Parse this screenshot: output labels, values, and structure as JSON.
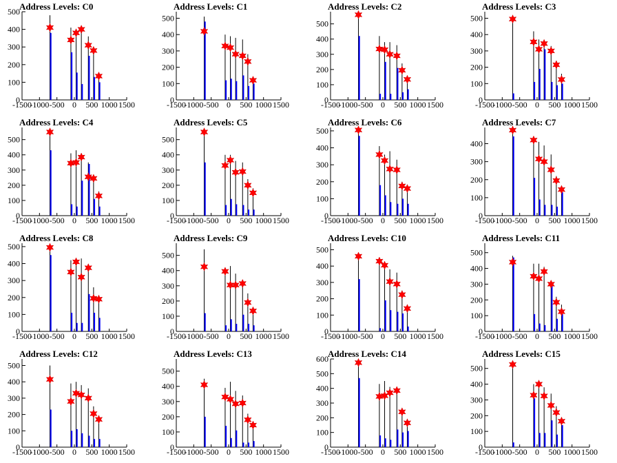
{
  "xlim": [
    -1500,
    1500
  ],
  "x_ticks": [
    -1500,
    -1000,
    -500,
    0,
    500,
    1000,
    1500
  ],
  "levels": [
    -700,
    -100,
    50,
    200,
    400,
    550,
    700
  ],
  "colors": {
    "black_line": "#000000",
    "blue_line": "#0000ff",
    "star": "#ff0000"
  },
  "chart_data": [
    {
      "type": "bar",
      "title": "Address Levels: C0",
      "ylim": [
        0,
        500
      ],
      "y_ticks": [
        0,
        100,
        200,
        300,
        400,
        500
      ],
      "peaks": [
        410,
        340,
        380,
        400,
        310,
        280,
        135
      ],
      "black": [
        480,
        410,
        400,
        420,
        360,
        290,
        150
      ],
      "blue": [
        380,
        270,
        155,
        90,
        250,
        130,
        100
      ]
    },
    {
      "type": "bar",
      "title": "Address Levels: C1",
      "ylim": [
        0,
        540
      ],
      "y_ticks": [
        0,
        100,
        200,
        300,
        400,
        500
      ],
      "peaks": [
        420,
        330,
        320,
        280,
        270,
        235,
        120
      ],
      "black": [
        510,
        400,
        390,
        380,
        370,
        280,
        130
      ],
      "blue": [
        480,
        120,
        130,
        115,
        150,
        85,
        100
      ]
    },
    {
      "type": "bar",
      "title": "Address Levels: C2",
      "ylim": [
        0,
        580
      ],
      "y_ticks": [
        0,
        100,
        200,
        300,
        400,
        500
      ],
      "peaks": [
        560,
        335,
        330,
        300,
        290,
        195,
        135
      ],
      "black": [
        570,
        420,
        380,
        380,
        360,
        240,
        155
      ],
      "blue": [
        420,
        40,
        250,
        40,
        210,
        50,
        70
      ]
    },
    {
      "type": "bar",
      "title": "Address Levels: C3",
      "ylim": [
        0,
        540
      ],
      "y_ticks": [
        0,
        100,
        200,
        300,
        400,
        500
      ],
      "peaks": [
        495,
        355,
        310,
        345,
        300,
        215,
        125
      ],
      "black": [
        500,
        420,
        370,
        360,
        330,
        240,
        160
      ],
      "blue": [
        40,
        110,
        190,
        310,
        110,
        90,
        100
      ]
    },
    {
      "type": "bar",
      "title": "Address Levels: C4",
      "ylim": [
        0,
        580
      ],
      "y_ticks": [
        0,
        100,
        200,
        300,
        400,
        500
      ],
      "peaks": [
        550,
        345,
        350,
        385,
        255,
        245,
        130
      ],
      "black": [
        560,
        410,
        430,
        390,
        350,
        260,
        160
      ],
      "blue": [
        430,
        75,
        60,
        230,
        340,
        110,
        60
      ]
    },
    {
      "type": "bar",
      "title": "Address Levels: C5",
      "ylim": [
        0,
        580
      ],
      "y_ticks": [
        0,
        100,
        200,
        300,
        400,
        500
      ],
      "peaks": [
        550,
        330,
        365,
        285,
        290,
        200,
        150
      ],
      "black": [
        560,
        400,
        400,
        360,
        350,
        240,
        180
      ],
      "blue": [
        350,
        70,
        110,
        75,
        70,
        40,
        40
      ]
    },
    {
      "type": "bar",
      "title": "Address Levels: C6",
      "ylim": [
        0,
        520
      ],
      "y_ticks": [
        0,
        100,
        200,
        300,
        400,
        500
      ],
      "peaks": [
        505,
        360,
        325,
        275,
        270,
        175,
        160
      ],
      "black": [
        510,
        410,
        360,
        380,
        330,
        200,
        170
      ],
      "blue": [
        470,
        180,
        120,
        80,
        70,
        100,
        70
      ]
    },
    {
      "type": "bar",
      "title": "Address Levels: C7",
      "ylim": [
        0,
        490
      ],
      "y_ticks": [
        0,
        100,
        200,
        300,
        400
      ],
      "peaks": [
        475,
        420,
        315,
        300,
        255,
        195,
        145
      ],
      "black": [
        480,
        430,
        410,
        390,
        340,
        220,
        150
      ],
      "blue": [
        440,
        210,
        90,
        60,
        60,
        50,
        130
      ]
    },
    {
      "type": "bar",
      "title": "Address Levels: C8",
      "ylim": [
        0,
        520
      ],
      "y_ticks": [
        0,
        100,
        200,
        300,
        400,
        500
      ],
      "peaks": [
        495,
        350,
        410,
        320,
        375,
        195,
        190
      ],
      "black": [
        500,
        420,
        420,
        430,
        380,
        260,
        200
      ],
      "blue": [
        450,
        110,
        50,
        50,
        220,
        110,
        80
      ]
    },
    {
      "type": "bar",
      "title": "Address Levels: C9",
      "ylim": [
        0,
        580
      ],
      "y_ticks": [
        0,
        100,
        200,
        300,
        400,
        500
      ],
      "peaks": [
        425,
        395,
        305,
        305,
        315,
        190,
        135
      ],
      "black": [
        540,
        400,
        430,
        380,
        330,
        250,
        160
      ],
      "blue": [
        120,
        40,
        80,
        50,
        110,
        50,
        40
      ]
    },
    {
      "type": "bar",
      "title": "Address Levels: C10",
      "ylim": [
        0,
        540
      ],
      "y_ticks": [
        0,
        100,
        200,
        300,
        400,
        500
      ],
      "peaks": [
        460,
        430,
        405,
        305,
        290,
        225,
        140
      ],
      "black": [
        470,
        430,
        410,
        380,
        360,
        250,
        160
      ],
      "blue": [
        320,
        20,
        190,
        130,
        120,
        110,
        30
      ]
    },
    {
      "type": "bar",
      "title": "Address Levels: C11",
      "ylim": [
        0,
        560
      ],
      "y_ticks": [
        0,
        100,
        200,
        300,
        400,
        500
      ],
      "peaks": [
        440,
        350,
        335,
        380,
        300,
        185,
        125
      ],
      "black": [
        480,
        430,
        430,
        410,
        310,
        220,
        170
      ],
      "blue": [
        470,
        110,
        50,
        40,
        290,
        80,
        110
      ]
    },
    {
      "type": "bar",
      "title": "Address Levels: C12",
      "ylim": [
        0,
        540
      ],
      "y_ticks": [
        0,
        100,
        200,
        300,
        400,
        500
      ],
      "peaks": [
        415,
        280,
        330,
        320,
        300,
        205,
        170
      ],
      "black": [
        500,
        390,
        400,
        380,
        360,
        250,
        190
      ],
      "blue": [
        230,
        100,
        110,
        85,
        70,
        50,
        50
      ]
    },
    {
      "type": "bar",
      "title": "Address Levels: C13",
      "ylim": [
        0,
        580
      ],
      "y_ticks": [
        0,
        100,
        200,
        300,
        400,
        500
      ],
      "peaks": [
        410,
        330,
        315,
        285,
        290,
        180,
        145
      ],
      "black": [
        450,
        390,
        430,
        370,
        340,
        220,
        160
      ],
      "blue": [
        200,
        140,
        60,
        110,
        30,
        30,
        40
      ]
    },
    {
      "type": "bar",
      "title": "Address Levels: C14",
      "ylim": [
        0,
        600
      ],
      "y_ticks": [
        0,
        100,
        200,
        300,
        400,
        500,
        600
      ],
      "peaks": [
        575,
        345,
        350,
        370,
        385,
        240,
        165
      ],
      "black": [
        580,
        430,
        450,
        410,
        380,
        260,
        180
      ],
      "blue": [
        470,
        80,
        60,
        50,
        120,
        100,
        110
      ]
    },
    {
      "type": "bar",
      "title": "Address Levels: C15",
      "ylim": [
        0,
        560
      ],
      "y_ticks": [
        0,
        100,
        200,
        300,
        400,
        500
      ],
      "peaks": [
        525,
        330,
        400,
        325,
        265,
        220,
        165
      ],
      "black": [
        530,
        400,
        400,
        380,
        340,
        260,
        180
      ],
      "blue": [
        30,
        310,
        90,
        90,
        170,
        80,
        140
      ]
    }
  ]
}
